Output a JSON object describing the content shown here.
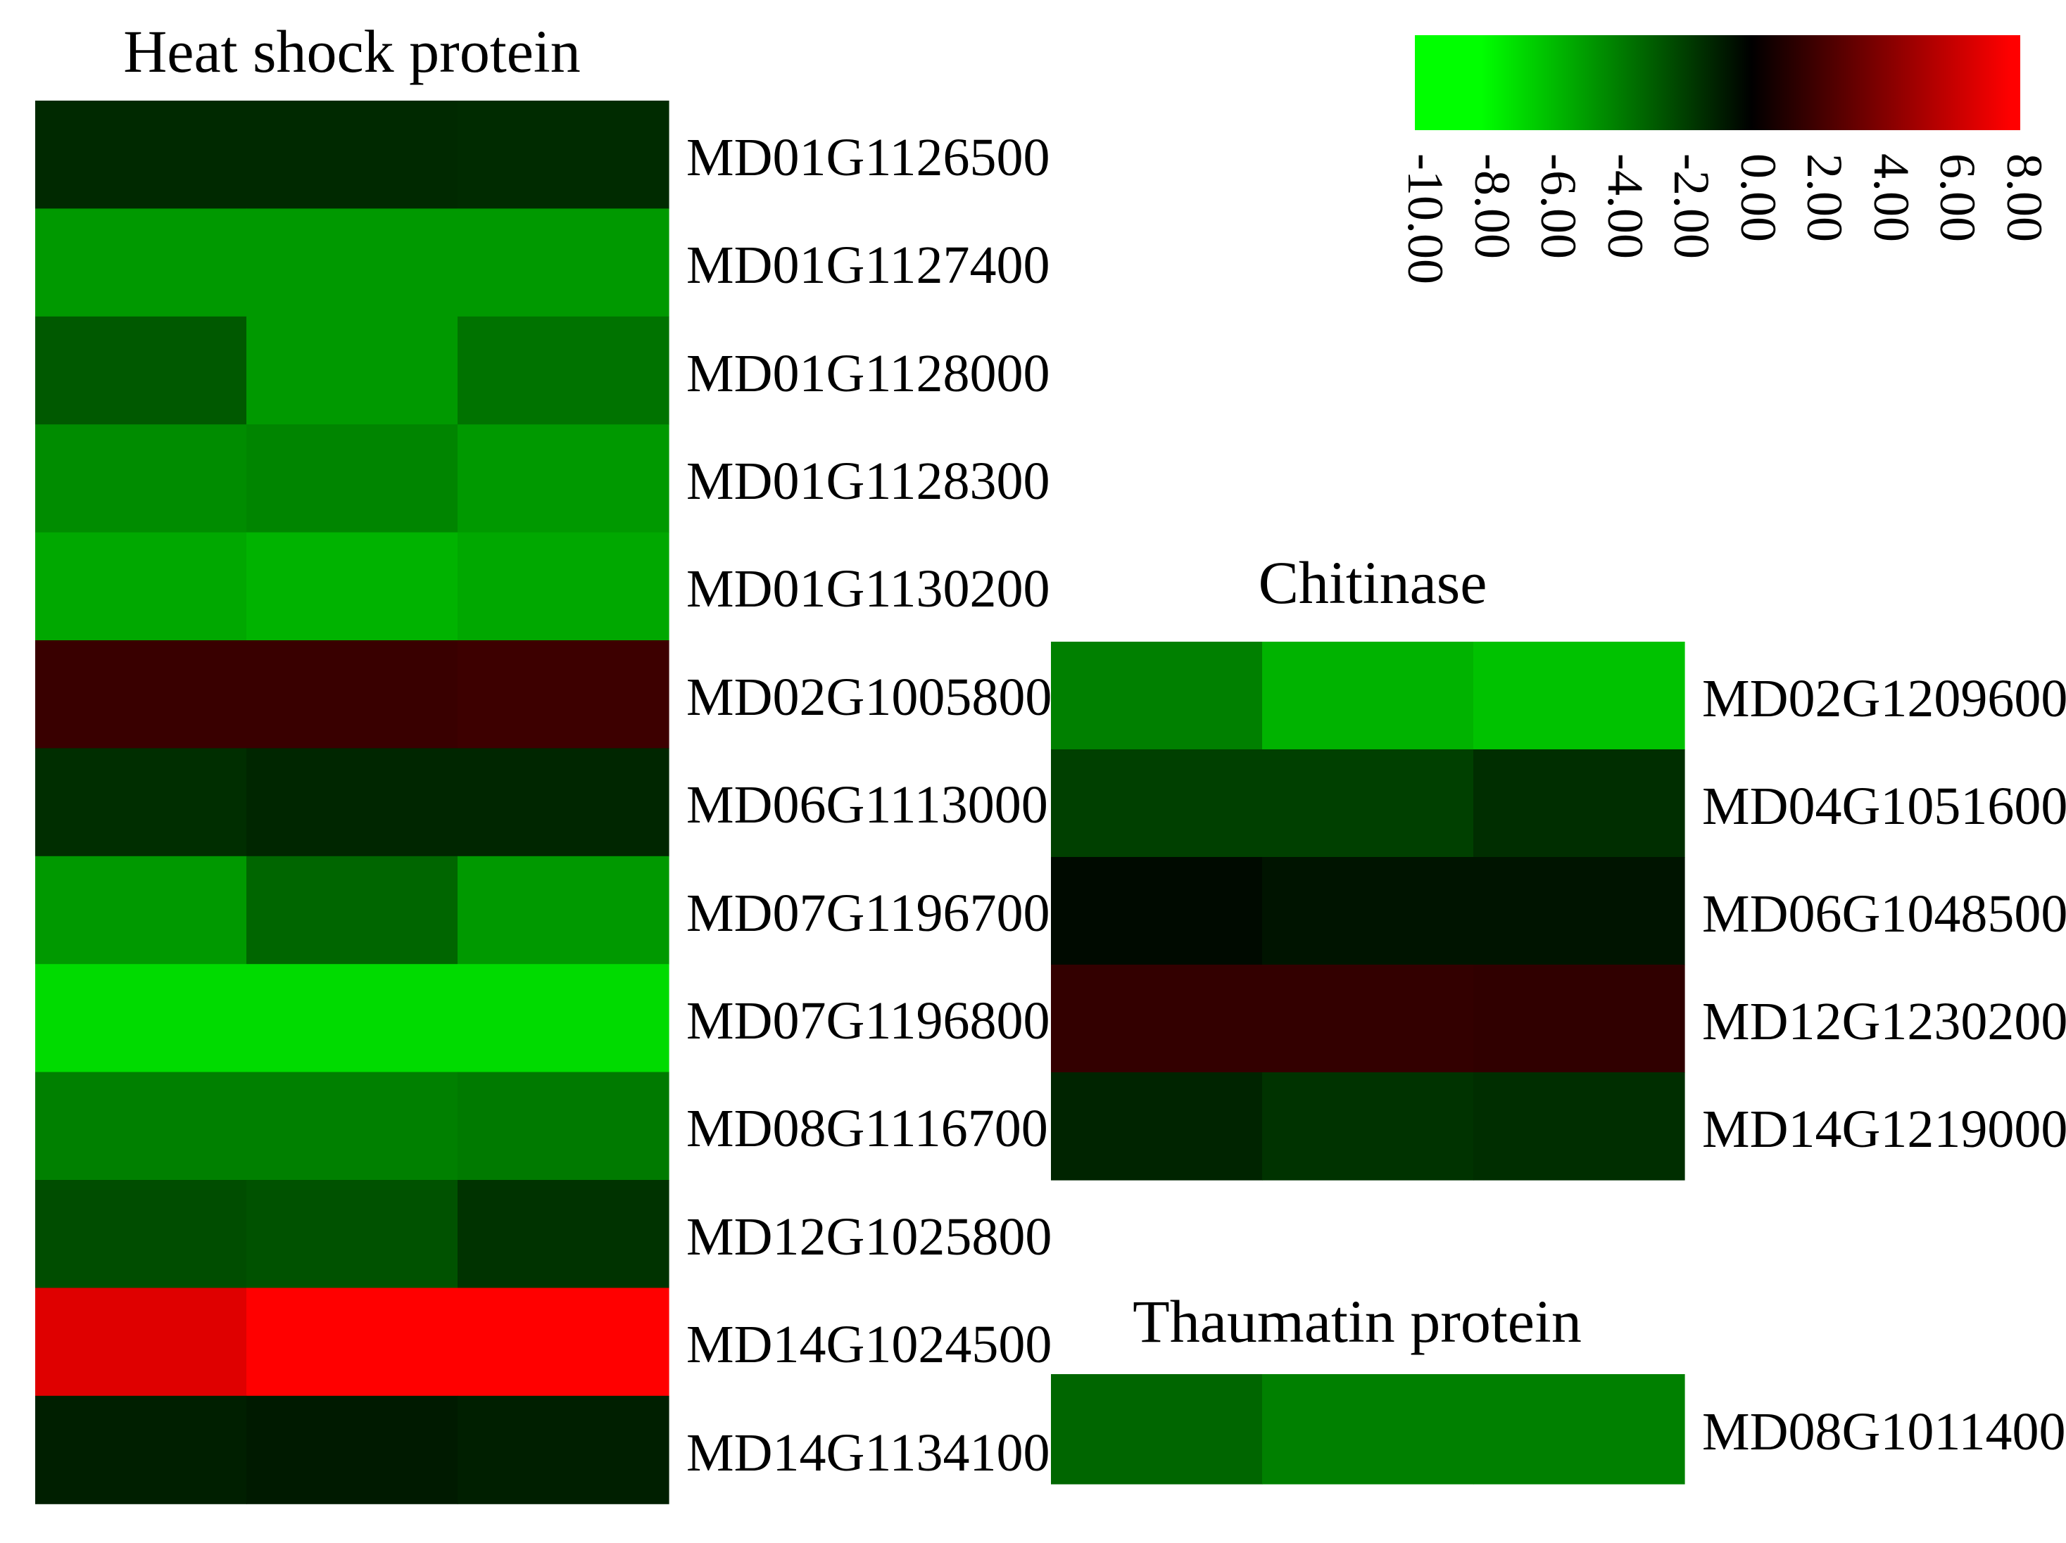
{
  "chart_data": [
    {
      "type": "heatmap",
      "title": "Heat shock protein",
      "xlabel": "",
      "ylabel": "",
      "rows": [
        "MD01G1126500",
        "MD01G1127400",
        "MD01G1128000",
        "MD01G1128300",
        "MD01G1130200",
        "MD02G1005800",
        "MD06G1113000",
        "MD07G1196700",
        "MD07G1196800",
        "MD08G1116700",
        "MD12G1025800",
        "MD14G1024500",
        "MD14G1134100"
      ],
      "values": [
        [
          -1.6,
          -1.6,
          -1.7
        ],
        [
          -6.0,
          -6.0,
          -6.0
        ],
        [
          -3.5,
          -6.0,
          -4.5
        ],
        [
          -5.5,
          -5.2,
          -6.0
        ],
        [
          -6.6,
          -7.0,
          -6.6
        ],
        [
          1.8,
          1.8,
          1.9
        ],
        [
          -1.8,
          -1.5,
          -1.5
        ],
        [
          -6.0,
          -4.0,
          -6.0
        ],
        [
          -8.6,
          -8.6,
          -8.6
        ],
        [
          -5.0,
          -5.0,
          -4.8
        ],
        [
          -3.0,
          -3.2,
          -2.0
        ],
        [
          7.0,
          8.0,
          8.0
        ],
        [
          -1.2,
          -1.0,
          -1.2
        ]
      ]
    },
    {
      "type": "heatmap",
      "title": "Chitinase",
      "xlabel": "",
      "ylabel": "",
      "rows": [
        "MD02G1209600",
        "MD04G1051600",
        "MD06G1048500",
        "MD12G1230200",
        "MD14G1219000"
      ],
      "values": [
        [
          -5.0,
          -7.0,
          -7.6
        ],
        [
          -2.5,
          -2.5,
          -1.8
        ],
        [
          -0.4,
          -0.8,
          -0.8
        ],
        [
          1.6,
          1.6,
          1.5
        ],
        [
          -1.4,
          -2.0,
          -1.8
        ]
      ]
    },
    {
      "type": "heatmap",
      "title": "Thaumatin protein",
      "xlabel": "",
      "ylabel": "",
      "rows": [
        "MD08G1011400"
      ],
      "values": [
        [
          -4.0,
          -5.0,
          -5.0
        ]
      ]
    }
  ],
  "color_scale": {
    "ticks": [
      "-10.00",
      "-8.00",
      "-6.00",
      "-4.00",
      "-2.00",
      "0.00",
      "2.00",
      "4.00",
      "6.00",
      "8.00"
    ],
    "range": [
      -10,
      8
    ],
    "low_color": "#00ff00",
    "mid_color": "#000000",
    "high_color": "#ff0000",
    "mid_value": 0
  }
}
